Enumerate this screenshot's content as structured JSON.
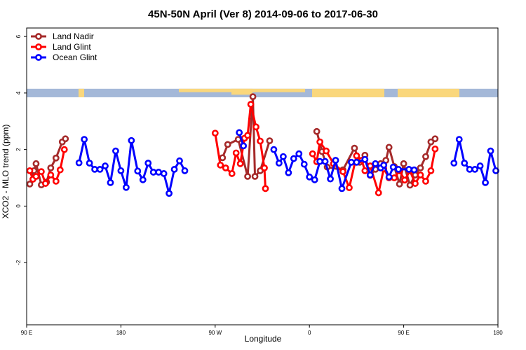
{
  "chart_data": {
    "type": "line",
    "title": "45N-50N April (Ver 8)   2014-09-06 to 2017-06-30",
    "xlabel": "Longitude",
    "ylabel": "XCO2 - MLO trend (ppm)",
    "x_axis": {
      "min": 90,
      "max": 540,
      "ticks": [
        90,
        180,
        270,
        360,
        450,
        540
      ],
      "tick_labels": [
        "90 E",
        "180",
        "90 W",
        "0",
        "90 E",
        "180"
      ]
    },
    "y_axis": {
      "min": -4.2,
      "max": 6.3,
      "ticks": [
        -2,
        0,
        2,
        4,
        6
      ],
      "tick_labels": [
        "-2",
        "0",
        "2",
        "4",
        "6"
      ]
    },
    "grid": false,
    "legend": {
      "position": "top-left"
    },
    "map_strip": {
      "y_range": [
        3.85,
        4.15
      ],
      "ocean_color": "#a4b8d8",
      "land_color": "#fad77c"
    },
    "series": [
      {
        "name": "Land Nadir",
        "color": "#a52a2a",
        "points": [
          [
            93,
            0.78
          ],
          [
            97,
            1.25
          ],
          [
            99,
            1.5
          ],
          [
            104,
            0.75
          ],
          [
            109,
            0.85
          ],
          [
            113,
            1.35
          ],
          [
            118,
            1.7
          ],
          [
            124,
            2.27
          ],
          [
            127,
            2.38
          ],
          [
            277,
            1.71
          ],
          [
            282,
            2.18
          ],
          [
            292,
            2.36
          ],
          [
            301,
            1.05
          ],
          [
            306,
            3.87
          ],
          [
            308,
            1.05
          ],
          [
            313,
            1.25
          ],
          [
            322,
            2.31
          ],
          [
            367,
            2.64
          ],
          [
            372,
            1.93
          ],
          [
            377,
            1.38
          ],
          [
            392,
            1.28
          ],
          [
            403,
            2.05
          ],
          [
            408,
            1.55
          ],
          [
            413,
            1.8
          ],
          [
            418,
            1.09
          ],
          [
            423,
            1.3
          ],
          [
            428,
            1.5
          ],
          [
            433,
            1.62
          ],
          [
            436,
            2.08
          ],
          [
            441,
            1.4
          ],
          [
            446,
            0.78
          ],
          [
            450,
            1.5
          ],
          [
            456,
            0.74
          ],
          [
            461,
            1.1
          ],
          [
            466,
            1.35
          ],
          [
            471,
            1.75
          ],
          [
            476,
            2.27
          ],
          [
            480,
            2.38
          ]
        ]
      },
      {
        "name": "Land Glint",
        "color": "#ff0000",
        "points": [
          [
            93,
            1.25
          ],
          [
            96,
            0.95
          ],
          [
            99,
            1.05
          ],
          [
            104,
            1.22
          ],
          [
            108,
            0.8
          ],
          [
            113,
            1.1
          ],
          [
            118,
            0.88
          ],
          [
            122,
            1.28
          ],
          [
            126,
            2.0
          ],
          [
            270,
            2.58
          ],
          [
            275,
            1.45
          ],
          [
            280,
            1.35
          ],
          [
            286,
            1.15
          ],
          [
            290,
            1.88
          ],
          [
            294,
            1.5
          ],
          [
            298,
            2.4
          ],
          [
            301,
            2.5
          ],
          [
            304,
            3.6
          ],
          [
            309,
            2.8
          ],
          [
            313,
            2.3
          ],
          [
            317,
            1.35
          ],
          [
            318,
            0.62
          ],
          [
            363,
            1.85
          ],
          [
            367,
            1.57
          ],
          [
            370,
            2.27
          ],
          [
            376,
            1.95
          ],
          [
            383,
            1.5
          ],
          [
            392,
            1.22
          ],
          [
            398,
            0.65
          ],
          [
            405,
            1.78
          ],
          [
            410,
            1.62
          ],
          [
            413,
            1.25
          ],
          [
            418,
            1.42
          ],
          [
            426,
            0.47
          ],
          [
            431,
            1.32
          ],
          [
            436,
            1.0
          ],
          [
            441,
            1.0
          ],
          [
            446,
            1.25
          ],
          [
            451,
            0.92
          ],
          [
            456,
            1.25
          ],
          [
            461,
            0.8
          ],
          [
            466,
            1.1
          ],
          [
            471,
            0.88
          ],
          [
            476,
            1.25
          ],
          [
            480,
            2.02
          ]
        ]
      },
      {
        "name": "Ocean Glint",
        "color": "#0000ff",
        "points": [
          [
            140,
            1.53
          ],
          [
            145,
            2.36
          ],
          [
            150,
            1.52
          ],
          [
            155,
            1.3
          ],
          [
            160,
            1.3
          ],
          [
            165,
            1.42
          ],
          [
            170,
            0.83
          ],
          [
            175,
            1.95
          ],
          [
            180,
            1.25
          ],
          [
            185,
            0.66
          ],
          [
            190,
            2.32
          ],
          [
            196,
            1.24
          ],
          [
            201,
            0.93
          ],
          [
            206,
            1.52
          ],
          [
            211,
            1.2
          ],
          [
            216,
            1.2
          ],
          [
            221,
            1.15
          ],
          [
            226,
            0.45
          ],
          [
            231,
            1.3
          ],
          [
            236,
            1.6
          ],
          [
            241,
            1.25
          ],
          [
            293,
            2.6
          ],
          [
            297,
            2.13
          ],
          [
            326,
            2.0
          ],
          [
            331,
            1.52
          ],
          [
            335,
            1.75
          ],
          [
            340,
            1.18
          ],
          [
            345,
            1.68
          ],
          [
            350,
            1.85
          ],
          [
            355,
            1.48
          ],
          [
            360,
            1.03
          ],
          [
            365,
            0.93
          ],
          [
            370,
            1.58
          ],
          [
            375,
            1.58
          ],
          [
            380,
            0.96
          ],
          [
            385,
            1.62
          ],
          [
            391,
            0.62
          ],
          [
            400,
            1.55
          ],
          [
            405,
            1.55
          ],
          [
            413,
            1.65
          ],
          [
            418,
            1.1
          ],
          [
            423,
            1.5
          ],
          [
            428,
            1.35
          ],
          [
            431,
            1.45
          ],
          [
            436,
            1.03
          ],
          [
            440,
            1.38
          ],
          [
            445,
            1.3
          ],
          [
            455,
            1.3
          ],
          [
            460,
            1.28
          ],
          [
            498,
            1.52
          ],
          [
            503,
            2.36
          ],
          [
            508,
            1.52
          ],
          [
            513,
            1.3
          ],
          [
            518,
            1.3
          ],
          [
            523,
            1.42
          ],
          [
            528,
            0.83
          ],
          [
            533,
            1.95
          ],
          [
            538,
            1.25
          ]
        ]
      }
    ]
  }
}
